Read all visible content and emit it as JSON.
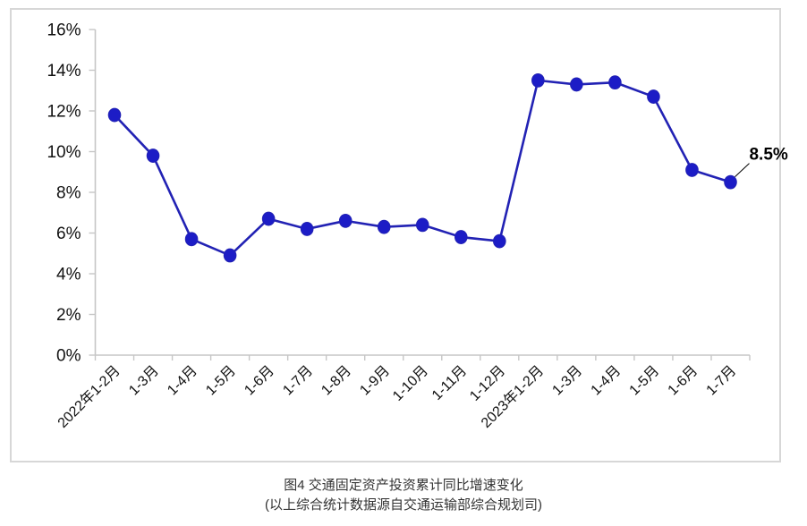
{
  "chart_data": {
    "type": "line",
    "categories": [
      "2022年1-2月",
      "1-3月",
      "1-4月",
      "1-5月",
      "1-6月",
      "1-7月",
      "1-8月",
      "1-9月",
      "1-10月",
      "1-11月",
      "1-12月",
      "2023年1-2月",
      "1-3月",
      "1-4月",
      "1-5月",
      "1-6月",
      "1-7月"
    ],
    "series": [
      {
        "name": "交通固定资产投资累计同比增速",
        "values": [
          11.8,
          9.8,
          5.7,
          4.9,
          6.7,
          6.2,
          6.6,
          6.3,
          6.4,
          5.8,
          5.6,
          13.5,
          13.3,
          13.4,
          12.7,
          9.1,
          8.5
        ]
      }
    ],
    "ylim": [
      0,
      16
    ],
    "ytick_step": 2,
    "ytick_labels": [
      "0%",
      "2%",
      "4%",
      "6%",
      "8%",
      "10%",
      "12%",
      "14%",
      "16%"
    ],
    "grid": false,
    "legend": "none",
    "annotation": {
      "text": "8.5%",
      "point_index": 16
    },
    "colors": {
      "line": "#2222b4",
      "marker": "#1c1cc6",
      "axis": "#c6c6c6",
      "frame_border": "#d7d7d7",
      "tick_label": "#111111",
      "annotation_text": "#000000"
    }
  },
  "caption": {
    "title": "图4  交通固定资产投资累计同比增速变化",
    "subtitle": "(以上综合统计数据源自交通运输部综合规划司)"
  }
}
